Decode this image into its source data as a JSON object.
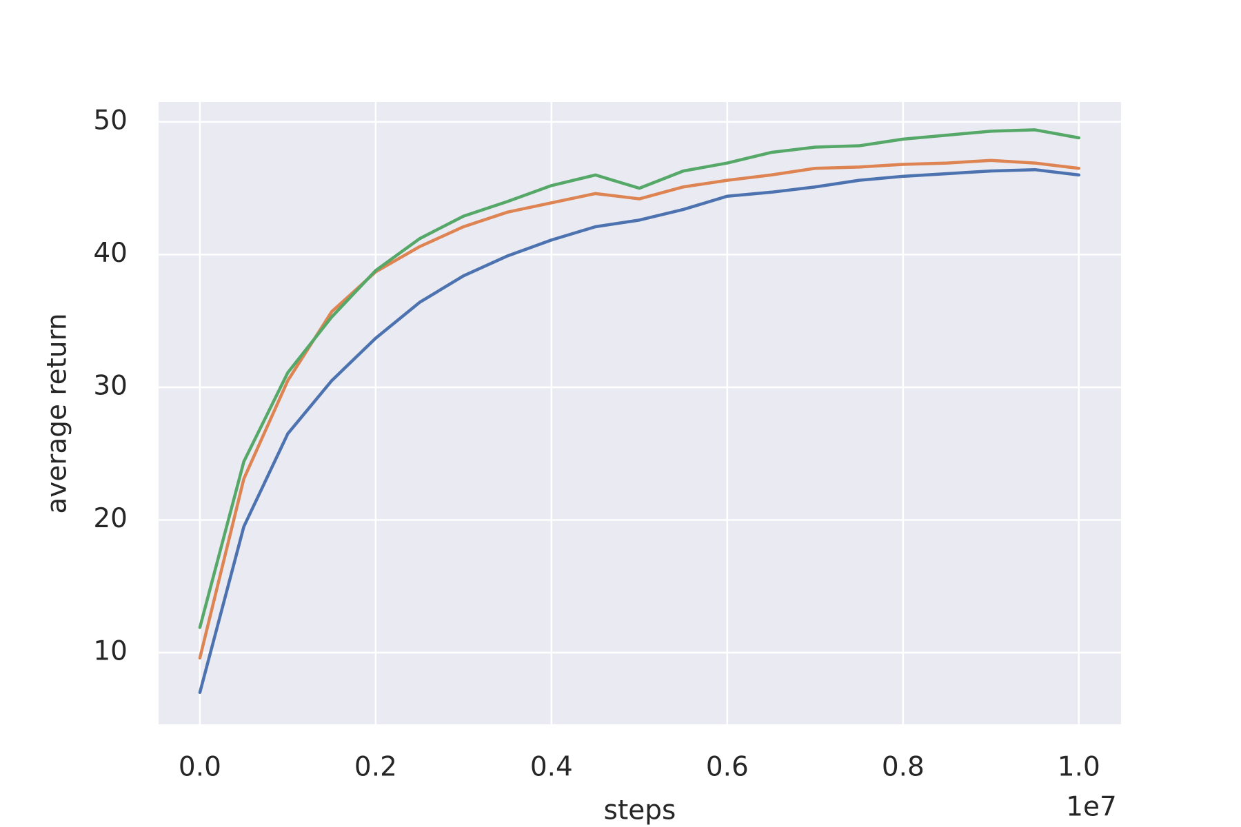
{
  "chart_data": {
    "type": "line",
    "xlabel": "steps",
    "ylabel": "average return",
    "x_offset_label": "1e7",
    "x": [
      0,
      0.05,
      0.1,
      0.15,
      0.2,
      0.25,
      0.3,
      0.35,
      0.4,
      0.45,
      0.5,
      0.55,
      0.6,
      0.65,
      0.7,
      0.75,
      0.8,
      0.85,
      0.9,
      0.95,
      1.0
    ],
    "series": [
      {
        "color": "#4c72b0",
        "values": [
          7.0,
          19.5,
          26.5,
          30.5,
          33.7,
          36.4,
          38.4,
          39.9,
          41.1,
          42.1,
          42.6,
          43.4,
          44.4,
          44.7,
          45.1,
          45.6,
          45.9,
          46.1,
          46.3,
          46.4,
          46.0
        ]
      },
      {
        "color": "#dd8452",
        "values": [
          9.6,
          23.1,
          30.5,
          35.7,
          38.7,
          40.6,
          42.1,
          43.2,
          43.9,
          44.6,
          44.2,
          45.1,
          45.6,
          46.0,
          46.5,
          46.6,
          46.8,
          46.9,
          47.1,
          46.9,
          46.5
        ]
      },
      {
        "color": "#55a868",
        "values": [
          11.9,
          24.4,
          31.1,
          35.3,
          38.8,
          41.2,
          42.9,
          44.0,
          45.2,
          46.0,
          45.0,
          46.3,
          46.9,
          47.7,
          48.1,
          48.2,
          48.7,
          49.0,
          49.3,
          49.4,
          48.8
        ]
      }
    ],
    "xlim": [
      -0.047,
      1.048
    ],
    "ylim": [
      4.6,
      51.5
    ],
    "xticks": [
      {
        "value": 0,
        "label": "0.0"
      },
      0.2,
      0.4,
      0.6,
      0.8,
      {
        "value": 1,
        "label": "1.0"
      }
    ],
    "yticks": [
      10,
      20,
      30,
      40,
      50
    ],
    "grid": true,
    "background": "#eaeaf2"
  }
}
